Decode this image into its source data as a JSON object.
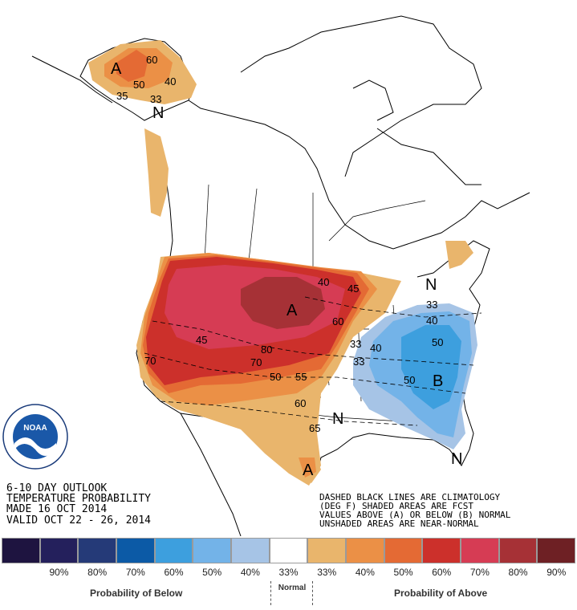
{
  "map": {
    "labels_above": [
      "A",
      "A",
      "A"
    ],
    "labels_below": [
      "B"
    ],
    "labels_normal": [
      "N",
      "N",
      "N",
      "N"
    ],
    "contour_values": [
      "60",
      "50",
      "40",
      "33",
      "35",
      "45",
      "80",
      "70",
      "70",
      "60",
      "50",
      "55",
      "60",
      "45",
      "40",
      "33",
      "33",
      "40",
      "50",
      "50",
      "40",
      "33",
      "65"
    ]
  },
  "title_block": {
    "line1": "6-10 DAY OUTLOOK",
    "line2": "TEMPERATURE PROBABILITY",
    "line3": "MADE  16 OCT 2014",
    "line4": "VALID  OCT 22 - 26, 2014"
  },
  "notes": {
    "line1": "DASHED BLACK LINES ARE CLIMATOLOGY",
    "line2": "(DEG F) SHADED AREAS ARE FCST",
    "line3": "VALUES ABOVE (A) OR BELOW (B) NORMAL",
    "line4": "UNSHADED AREAS ARE NEAR-NORMAL"
  },
  "logo": {
    "text": "NOAA"
  },
  "legend": {
    "colors": [
      "#1e1440",
      "#24205c",
      "#253a78",
      "#0c5aa6",
      "#3d9fde",
      "#73b3e8",
      "#a6c4e6",
      "#ffffff",
      "#e9b56c",
      "#eb9046",
      "#e46a34",
      "#cc302b",
      "#d63c54",
      "#a63136",
      "#6e2024"
    ],
    "ticks": [
      "",
      "90%",
      "80%",
      "70%",
      "60%",
      "50%",
      "40%",
      "33%",
      "33%",
      "40%",
      "50%",
      "60%",
      "70%",
      "80%",
      "90%"
    ],
    "below_caption": "Probability of Below",
    "normal_caption": "Normal",
    "above_caption": "Probability of Above"
  },
  "colors": {
    "above_40": "#e9b56c",
    "above_50": "#eb9046",
    "above_60": "#e46a34",
    "above_70": "#cc302b",
    "above_80": "#d63c54",
    "above_90": "#a63136",
    "below_33": "#a6c4e6",
    "below_40": "#73b3e8",
    "below_50": "#3d9fde"
  }
}
